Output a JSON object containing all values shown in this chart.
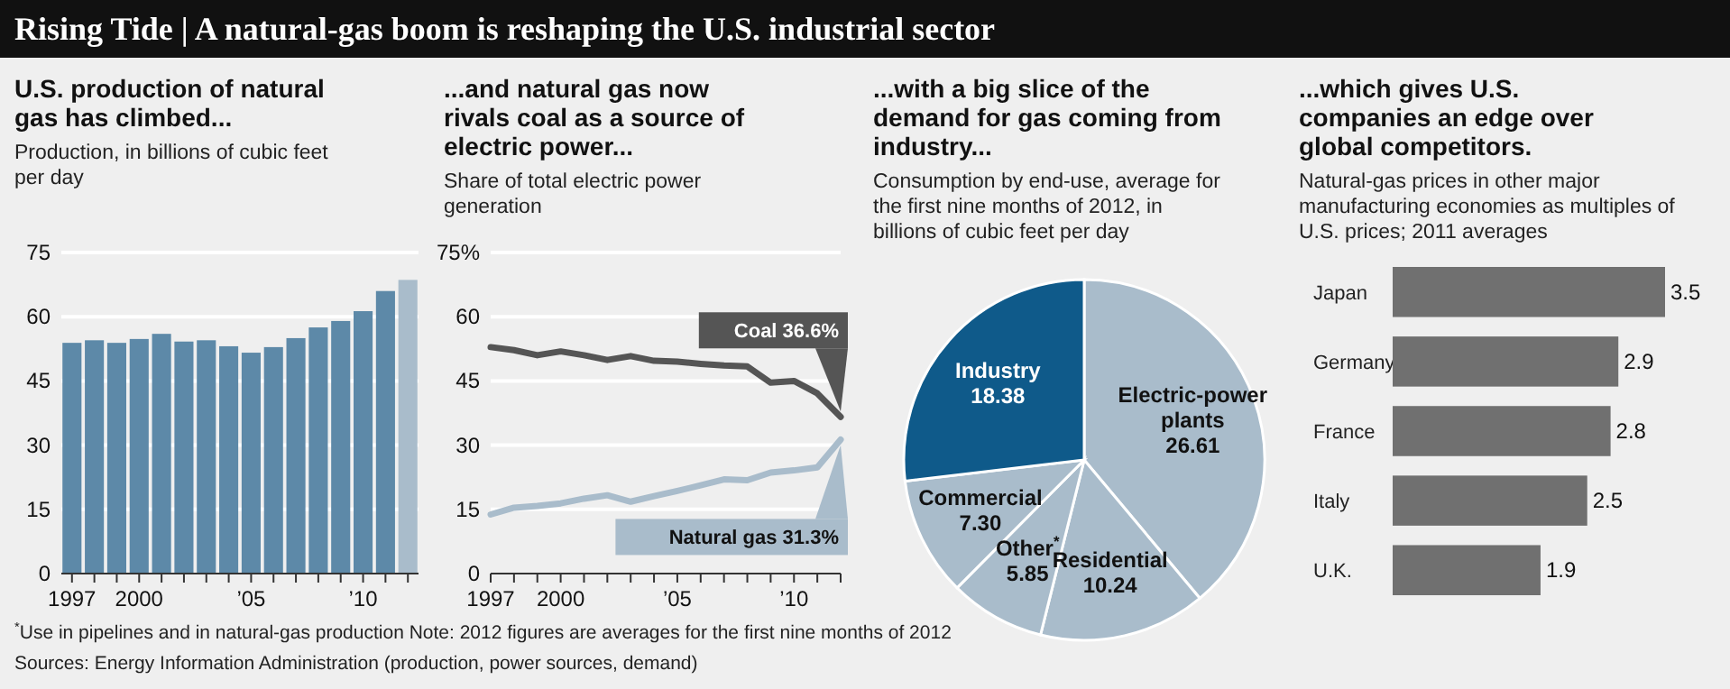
{
  "chart_data": [
    {
      "type": "other",
      "title": "Rising Tide | A natural-gas boom is reshaping the U.S. industrial sector"
    },
    {
      "type": "bar",
      "title": "U.S. production of natural gas has climbed...",
      "subtitle": "Production, in billions of cubic feet per day",
      "categories": [
        "1997",
        null,
        null,
        "2000",
        null,
        null,
        null,
        null,
        "’05",
        null,
        null,
        null,
        null,
        "’10",
        null,
        null
      ],
      "values": [
        53.9,
        54.5,
        53.9,
        54.8,
        56.0,
        54.2,
        54.5,
        53.1,
        51.6,
        52.9,
        55.0,
        57.5,
        59.0,
        61.3,
        66.0,
        68.6
      ],
      "colors": [
        "#5d89a8",
        "#5d89a8",
        "#5d89a8",
        "#5d89a8",
        "#5d89a8",
        "#5d89a8",
        "#5d89a8",
        "#5d89a8",
        "#5d89a8",
        "#5d89a8",
        "#5d89a8",
        "#5d89a8",
        "#5d89a8",
        "#5d89a8",
        "#5d89a8",
        "#a9bccb"
      ],
      "ylim": [
        0,
        75
      ],
      "yticks": [
        0,
        15,
        30,
        45,
        60,
        75
      ],
      "grid": "y"
    },
    {
      "type": "line",
      "title": "...and natural gas now rivals coal as a source of electric power...",
      "subtitle": "Share of total electric power generation",
      "x": [
        1997,
        1998,
        1999,
        2000,
        2001,
        2002,
        2003,
        2004,
        2005,
        2006,
        2007,
        2008,
        2009,
        2010,
        2011,
        2012
      ],
      "xlim": [
        1997,
        2012
      ],
      "xticks": [
        {
          "value": 1997,
          "label": "1997"
        },
        {
          "value": 1998,
          "label": null
        },
        {
          "value": 1999,
          "label": null
        },
        {
          "value": 2000,
          "label": "2000"
        },
        {
          "value": 2001,
          "label": null
        },
        {
          "value": 2002,
          "label": null
        },
        {
          "value": 2003,
          "label": null
        },
        {
          "value": 2004,
          "label": null
        },
        {
          "value": 2005,
          "label": "’05"
        },
        {
          "value": 2006,
          "label": null
        },
        {
          "value": 2007,
          "label": null
        },
        {
          "value": 2008,
          "label": null
        },
        {
          "value": 2009,
          "label": null
        },
        {
          "value": 2010,
          "label": "’10"
        },
        {
          "value": 2011,
          "label": null
        },
        {
          "value": 2012,
          "label": null
        }
      ],
      "ylim": [
        0,
        75
      ],
      "yticks": [
        0,
        15,
        30,
        45,
        60,
        {
          "value": 75,
          "label": "75%"
        }
      ],
      "grid": "y",
      "line_style": "solid",
      "series": [
        {
          "name": "Coal",
          "color": "#555555",
          "values": [
            52.9,
            52.2,
            51.0,
            51.9,
            51.0,
            49.9,
            50.8,
            49.7,
            49.5,
            49.0,
            48.6,
            48.4,
            44.6,
            45.0,
            42.1,
            36.6
          ],
          "value_labels": [
            null,
            null,
            null,
            null,
            null,
            null,
            null,
            null,
            null,
            null,
            null,
            null,
            null,
            null,
            null,
            "36.6%"
          ]
        },
        {
          "name": "Natural gas",
          "color": "#a9bccb",
          "values": [
            13.8,
            15.4,
            15.8,
            16.4,
            17.5,
            18.3,
            16.8,
            18.1,
            19.3,
            20.6,
            22.0,
            21.8,
            23.6,
            24.1,
            24.8,
            31.3
          ],
          "value_labels": [
            null,
            null,
            null,
            null,
            null,
            null,
            null,
            null,
            null,
            null,
            null,
            null,
            null,
            null,
            null,
            "31.3%"
          ]
        }
      ]
    },
    {
      "type": "pie",
      "title": "...with a big slice of the demand for gas coming from industry...",
      "subtitle": "Consumption by end-use, average for the first nine months of 2012, in billions of cubic feet per day",
      "categories": [
        "Electric-power plants",
        "Residential",
        "Other$^{*}$",
        "Commercial",
        "Industry"
      ],
      "values": [
        26.61,
        10.24,
        5.85,
        7.3,
        18.38
      ],
      "value_labels": [
        "26.61",
        "10.24",
        "5.85",
        "7.30",
        "18.38"
      ],
      "colors": [
        "#a9bccb",
        "#a9bccb",
        "#a9bccb",
        "#a9bccb",
        "#0f5a8a"
      ]
    },
    {
      "type": "bar",
      "orientation": "horizontal",
      "title": "...which gives U.S. companies an edge over global competitors.",
      "subtitle": "Natural-gas prices in other major manufacturing economies as multiples of U.S. prices; 2011 averages",
      "categories": [
        "Japan",
        "Germany",
        "France",
        "Italy",
        "U.K."
      ],
      "values": [
        3.5,
        2.9,
        2.8,
        2.5,
        1.9
      ],
      "color": "#707070",
      "data_labels": true
    },
    {
      "type": "other",
      "annotations": [
        "$^{*}$Use in pipelines and in natural-gas production     Note: 2012 figures are averages for the first nine months of 2012",
        "Sources: Energy Information Administration (production, power sources, demand)"
      ]
    }
  ]
}
